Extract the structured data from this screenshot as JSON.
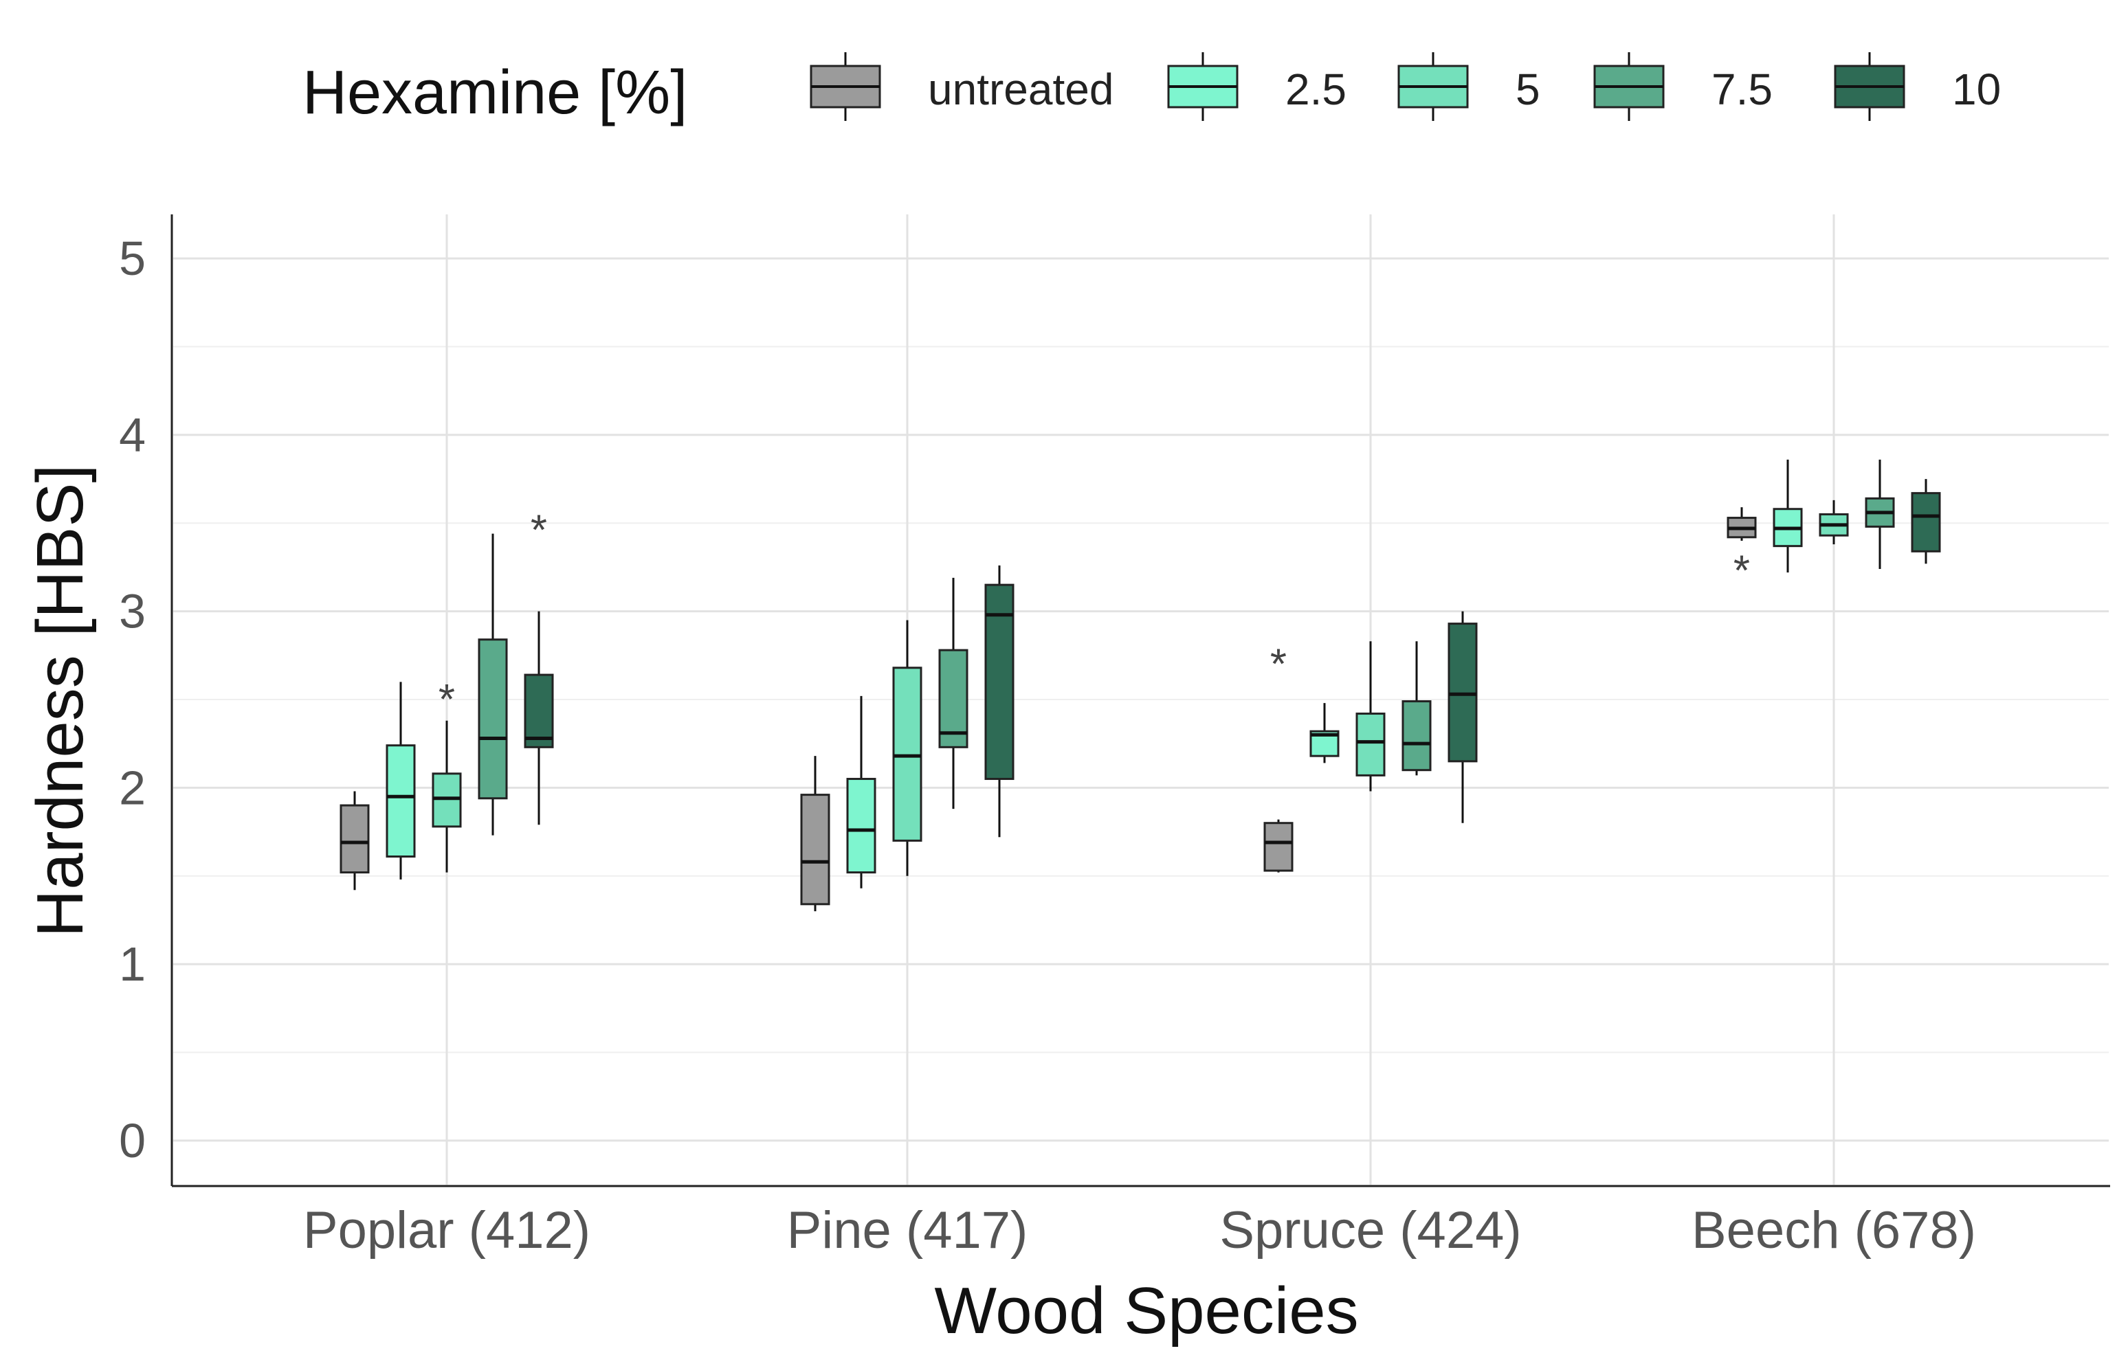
{
  "chart_data": {
    "type": "boxplot",
    "xlabel": "Wood Species",
    "ylabel": "Hardness [HBS]",
    "ylim": [
      -0.25,
      5.25
    ],
    "yticks": [
      "0",
      "1",
      "2",
      "3",
      "4",
      "5"
    ],
    "grid": true,
    "legend": {
      "title": "Hexamine [%]",
      "placement": "top",
      "entries": [
        "untreated",
        "2.5",
        "5",
        "7.5",
        "10"
      ]
    },
    "series_colors": {
      "untreated": "#9b9b9b",
      "2.5": "#7ef5cf",
      "5": "#74e0bb",
      "7.5": "#5aaa8b",
      "10": "#2e6b55"
    },
    "outlier_marker": "*",
    "categories": [
      "Poplar (412)",
      "Pine (417)",
      "Spruce (424)",
      "Beech (678)"
    ],
    "series": [
      {
        "name": "untreated",
        "boxes": [
          {
            "min": 1.42,
            "q1": 1.52,
            "median": 1.69,
            "q3": 1.9,
            "max": 1.98,
            "outliers": []
          },
          {
            "min": 1.3,
            "q1": 1.34,
            "median": 1.58,
            "q3": 1.96,
            "max": 2.18,
            "outliers": []
          },
          {
            "min": 1.52,
            "q1": 1.53,
            "median": 1.69,
            "q3": 1.8,
            "max": 1.82,
            "outliers": [
              2.72
            ]
          },
          {
            "min": 3.4,
            "q1": 3.42,
            "median": 3.47,
            "q3": 3.53,
            "max": 3.59,
            "outliers": [
              3.25
            ]
          }
        ]
      },
      {
        "name": "2.5",
        "boxes": [
          {
            "min": 1.48,
            "q1": 1.61,
            "median": 1.95,
            "q3": 2.24,
            "max": 2.6,
            "outliers": []
          },
          {
            "min": 1.43,
            "q1": 1.52,
            "median": 1.76,
            "q3": 2.05,
            "max": 2.52,
            "outliers": []
          },
          {
            "min": 2.14,
            "q1": 2.18,
            "median": 2.3,
            "q3": 2.32,
            "max": 2.48,
            "outliers": []
          },
          {
            "min": 3.22,
            "q1": 3.37,
            "median": 3.47,
            "q3": 3.58,
            "max": 3.86,
            "outliers": []
          }
        ]
      },
      {
        "name": "5",
        "boxes": [
          {
            "min": 1.52,
            "q1": 1.78,
            "median": 1.94,
            "q3": 2.08,
            "max": 2.38,
            "outliers": [
              2.52
            ]
          },
          {
            "min": 1.5,
            "q1": 1.7,
            "median": 2.18,
            "q3": 2.68,
            "max": 2.95,
            "outliers": []
          },
          {
            "min": 1.98,
            "q1": 2.07,
            "median": 2.26,
            "q3": 2.42,
            "max": 2.83,
            "outliers": []
          },
          {
            "min": 3.38,
            "q1": 3.43,
            "median": 3.49,
            "q3": 3.55,
            "max": 3.63,
            "outliers": []
          }
        ]
      },
      {
        "name": "7.5",
        "boxes": [
          {
            "min": 1.73,
            "q1": 1.94,
            "median": 2.28,
            "q3": 2.84,
            "max": 3.44,
            "outliers": []
          },
          {
            "min": 1.88,
            "q1": 2.23,
            "median": 2.31,
            "q3": 2.78,
            "max": 3.19,
            "outliers": []
          },
          {
            "min": 2.07,
            "q1": 2.1,
            "median": 2.25,
            "q3": 2.49,
            "max": 2.83,
            "outliers": []
          },
          {
            "min": 3.24,
            "q1": 3.48,
            "median": 3.56,
            "q3": 3.64,
            "max": 3.86,
            "outliers": []
          }
        ]
      },
      {
        "name": "10",
        "boxes": [
          {
            "min": 1.79,
            "q1": 2.23,
            "median": 2.28,
            "q3": 2.64,
            "max": 3.0,
            "outliers": [
              3.48
            ]
          },
          {
            "min": 1.72,
            "q1": 2.05,
            "median": 2.98,
            "q3": 3.15,
            "max": 3.26,
            "outliers": []
          },
          {
            "min": 1.8,
            "q1": 2.15,
            "median": 2.53,
            "q3": 2.93,
            "max": 3.0,
            "outliers": []
          },
          {
            "min": 3.27,
            "q1": 3.34,
            "median": 3.54,
            "q3": 3.67,
            "max": 3.75,
            "outliers": []
          }
        ]
      }
    ]
  }
}
